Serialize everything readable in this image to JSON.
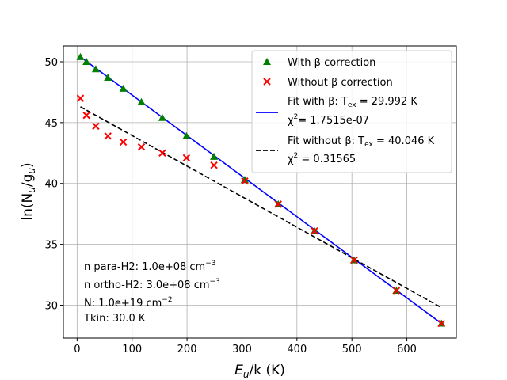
{
  "chart_data": {
    "type": "scatter",
    "xlabel_main": "E",
    "xlabel_sub": "u",
    "xlabel_rest": "/k (K)",
    "ylabel_pre": "ln(N",
    "ylabel_sub1": "u",
    "ylabel_mid": "/g",
    "ylabel_sub2": "u",
    "ylabel_post": ")",
    "xlim": [
      -25,
      690
    ],
    "ylim": [
      27.3,
      51.3
    ],
    "xticks": [
      0,
      100,
      200,
      300,
      400,
      500,
      600
    ],
    "yticks": [
      30,
      35,
      40,
      45,
      50
    ],
    "grid": true,
    "legend_position": "top-right",
    "series": [
      {
        "name": "With β correction",
        "marker": "triangle",
        "color": "#008000",
        "x": [
          6,
          17,
          34,
          56,
          84,
          117,
          155,
          199,
          249,
          305,
          366,
          432,
          504,
          581,
          663
        ],
        "y": [
          50.4,
          50.0,
          49.4,
          48.7,
          47.8,
          46.7,
          45.4,
          43.9,
          42.2,
          40.3,
          38.3,
          36.1,
          33.7,
          31.2,
          28.5
        ]
      },
      {
        "name": "Without β correction",
        "marker": "x",
        "color": "#ff0000",
        "x": [
          6,
          17,
          34,
          56,
          84,
          117,
          155,
          199,
          249,
          305,
          366,
          432,
          504,
          581,
          663
        ],
        "y": [
          47.0,
          45.6,
          44.7,
          43.9,
          43.4,
          43.0,
          42.5,
          42.1,
          41.5,
          40.2,
          38.3,
          36.1,
          33.7,
          31.2,
          28.5
        ]
      },
      {
        "name": "Fit with β",
        "line_style": "solid",
        "color": "#0000ff",
        "label_line1": "Fit with β: T",
        "label_line1_sub": "ex",
        "label_line1_rest": " = 29.992 K",
        "label_line2": "χ",
        "label_line2_sup": "2",
        "label_line2_rest": "= 1.7515e-07",
        "x": [
          6,
          663
        ],
        "y": [
          50.4,
          28.5
        ]
      },
      {
        "name": "Fit without β",
        "line_style": "dashed",
        "color": "#000000",
        "label_line1": "Fit without β: T",
        "label_line1_sub": "ex",
        "label_line1_rest": " = 40.046 K",
        "label_line2": "χ",
        "label_line2_sup": "2",
        "label_line2_rest": " = 0.31565",
        "x": [
          6,
          663
        ],
        "y": [
          46.3,
          29.8
        ]
      }
    ],
    "annotations": [
      {
        "text": "n para-H2: 1.0e+08 cm",
        "sup": "−3"
      },
      {
        "text": "n ortho-H2: 3.0e+08 cm",
        "sup": "−3"
      },
      {
        "text": "N: 1.0e+19 cm",
        "sup": "−2"
      },
      {
        "text": "Tkin: 30.0 K",
        "sup": ""
      }
    ]
  }
}
